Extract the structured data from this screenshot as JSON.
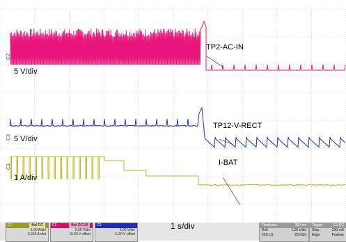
{
  "traces": {
    "ac_in": {
      "label": "TP2-AC-IN",
      "scale": "5 V/div",
      "color": "#e8157a",
      "marker": "C2"
    },
    "v_rect": {
      "label": "TP12-V-RECT",
      "scale": "5 V/div",
      "color": "#1c2fb8",
      "marker": "C3"
    },
    "i_bat": {
      "label": "I-BAT",
      "scale": "1 A/div",
      "color": "#b8b81c",
      "marker": "C1"
    }
  },
  "timebase_label": "1 s/div",
  "channels": [
    {
      "name": "C1",
      "tag": "Bwl DC",
      "lines": [
        "1.00 A/div",
        "-3.020 A ofst"
      ],
      "color": "#b8b81c"
    },
    {
      "name": "C2",
      "tag": "Bwl DC1M",
      "lines": [
        "5.00 V/div",
        "10.00 V offset"
      ],
      "color": "#e8157a"
    },
    {
      "name": "C3",
      "tag": "",
      "lines": [
        "5.00 V/div",
        "-5.20 V offset"
      ],
      "color": "#1c2fb8"
    }
  ],
  "timebase_box": {
    "header": [
      "Timebase",
      "360 ms"
    ],
    "rows": [
      [
        "Roll",
        "1.00 s/div"
      ],
      [
        "25S LS",
        "25 kS/s"
      ]
    ]
  },
  "trigger_box": {
    "header": [
      "Trigger",
      "C1 DC"
    ],
    "rows": [
      [
        "Stop",
        "230 mA"
      ],
      [
        "Edge",
        "Positive"
      ]
    ]
  }
}
